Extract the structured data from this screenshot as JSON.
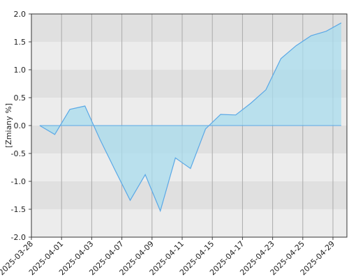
{
  "chart_data": {
    "type": "area",
    "y_label": "[Zmiany %]",
    "categories": [
      "2025-03-28",
      null,
      "2025-04-01",
      null,
      "2025-04-03",
      null,
      "2025-04-07",
      null,
      "2025-04-09",
      null,
      "2025-04-11",
      null,
      "2025-04-15",
      null,
      "2025-04-17",
      null,
      "2025-04-23",
      null,
      "2025-04-25",
      null,
      "2025-04-29"
    ],
    "values": [
      0.0,
      -0.16,
      0.29,
      0.35,
      -0.25,
      -0.8,
      -1.34,
      -0.88,
      -1.53,
      -0.58,
      -0.77,
      -0.06,
      0.2,
      0.19,
      0.4,
      0.64,
      1.2,
      1.43,
      1.61,
      1.69,
      1.84
    ],
    "color": "#5aa8e6",
    "fill": "#a8dcee",
    "ylim": [
      -2.0,
      2.0
    ],
    "yticks": [
      {
        "value": 2.0,
        "label": "2.0"
      },
      {
        "value": 1.5,
        "label": "1.5"
      },
      {
        "value": 1.0,
        "label": "1.0"
      },
      {
        "value": 0.5,
        "label": "0.5"
      },
      {
        "value": 0.0,
        "label": "0.0"
      },
      {
        "value": -0.5,
        "label": "-0.5"
      },
      {
        "value": -1.0,
        "label": "-1.0"
      },
      {
        "value": -1.5,
        "label": "-1.5"
      },
      {
        "value": -2.0,
        "label": "-2.0"
      }
    ],
    "band_colors": [
      "#e0e0e0",
      "#ececec"
    ],
    "grid": true
  }
}
